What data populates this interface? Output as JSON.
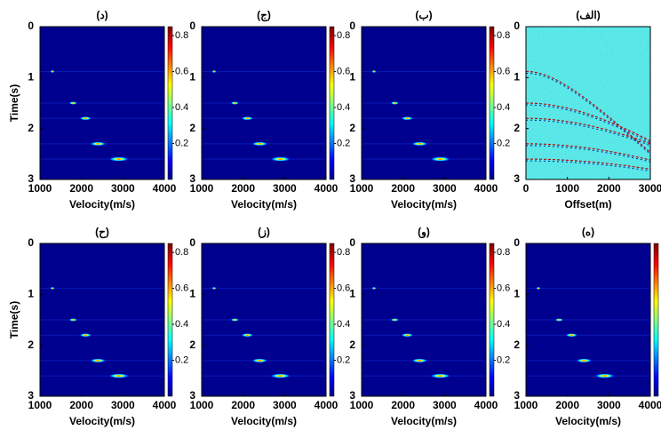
{
  "chart_data": [
    {
      "type": "velocity-spectrum",
      "title": "(د)",
      "xlabel": "Velocity(m/s)",
      "ylabel": "Time(s)",
      "xlim": [
        1000,
        4000
      ],
      "xticks": [
        1000,
        2000,
        3000,
        4000
      ],
      "ylim": [
        3,
        0
      ],
      "yticks": [
        0,
        1,
        2,
        3
      ],
      "clim": [
        0,
        0.85
      ],
      "cticks": [
        0.2,
        0.4,
        0.6,
        0.8
      ],
      "x": [
        1300,
        1800,
        2100,
        2400,
        2900
      ],
      "y": [
        0.88,
        1.5,
        1.8,
        2.3,
        2.6
      ],
      "background": "#00008f"
    },
    {
      "type": "velocity-spectrum",
      "title": "(ج)",
      "xlabel": "Velocity(m/s)",
      "xlim": [
        1000,
        4000
      ],
      "xticks": [
        1000,
        2000,
        3000,
        4000
      ],
      "ylim": [
        3,
        0
      ],
      "yticks": [
        0,
        1,
        2,
        3
      ],
      "clim": [
        0,
        0.85
      ],
      "cticks": [
        0.2,
        0.4,
        0.6,
        0.8
      ],
      "x": [
        1300,
        1800,
        2100,
        2400,
        2900
      ],
      "y": [
        0.88,
        1.5,
        1.8,
        2.3,
        2.6
      ],
      "background": "#00008f"
    },
    {
      "type": "velocity-spectrum",
      "title": "(ب)",
      "xlabel": "Velocity(m/s)",
      "xlim": [
        1000,
        4000
      ],
      "xticks": [
        1000,
        2000,
        3000,
        4000
      ],
      "ylim": [
        3,
        0
      ],
      "yticks": [
        0,
        1,
        2,
        3
      ],
      "clim": [
        0,
        0.85
      ],
      "cticks": [
        0.2,
        0.4,
        0.6,
        0.8
      ],
      "x": [
        1300,
        1800,
        2100,
        2400,
        2900
      ],
      "y": [
        0.88,
        1.5,
        1.8,
        2.3,
        2.6
      ],
      "background": "#00008f"
    },
    {
      "type": "seismic-gather",
      "title": "(الف)",
      "xlabel": "Offset(m)",
      "xlim": [
        0,
        3000
      ],
      "xticks": [
        0,
        1000,
        2000,
        3000
      ],
      "ylim": [
        3,
        0
      ],
      "yticks": [
        0,
        1,
        2,
        3
      ],
      "t0": [
        0.88,
        1.5,
        1.8,
        2.3,
        2.6
      ],
      "velocity": [
        1300,
        1800,
        2100,
        2400,
        2900
      ],
      "background": "#2fd4c4"
    },
    {
      "type": "velocity-spectrum",
      "title": "(ح)",
      "xlabel": "Velocity(m/s)",
      "ylabel": "Time(s)",
      "xlim": [
        1000,
        4000
      ],
      "xticks": [
        1000,
        2000,
        3000,
        4000
      ],
      "ylim": [
        3,
        0
      ],
      "yticks": [
        0,
        1,
        2,
        3
      ],
      "clim": [
        0,
        0.85
      ],
      "cticks": [
        0.2,
        0.4,
        0.6,
        0.8
      ],
      "x": [
        1300,
        1800,
        2100,
        2400,
        2900
      ],
      "y": [
        0.88,
        1.5,
        1.8,
        2.3,
        2.6
      ],
      "background": "#00008f"
    },
    {
      "type": "velocity-spectrum",
      "title": "(ز)",
      "xlabel": "Velocity(m/s)",
      "xlim": [
        1000,
        4000
      ],
      "xticks": [
        1000,
        2000,
        3000,
        4000
      ],
      "ylim": [
        3,
        0
      ],
      "yticks": [
        0,
        1,
        2,
        3
      ],
      "clim": [
        0,
        0.85
      ],
      "cticks": [
        0.2,
        0.4,
        0.6,
        0.8
      ],
      "x": [
        1300,
        1800,
        2100,
        2400,
        2900
      ],
      "y": [
        0.88,
        1.5,
        1.8,
        2.3,
        2.6
      ],
      "background": "#00008f"
    },
    {
      "type": "velocity-spectrum",
      "title": "(و)",
      "xlabel": "Velocity(m/s)",
      "xlim": [
        1000,
        4000
      ],
      "xticks": [
        1000,
        2000,
        3000,
        4000
      ],
      "ylim": [
        3,
        0
      ],
      "yticks": [
        0,
        1,
        2,
        3
      ],
      "clim": [
        0,
        0.85
      ],
      "cticks": [
        0.2,
        0.4,
        0.6,
        0.8
      ],
      "x": [
        1300,
        1800,
        2100,
        2400,
        2900
      ],
      "y": [
        0.88,
        1.5,
        1.8,
        2.3,
        2.6
      ],
      "background": "#00008f"
    },
    {
      "type": "velocity-spectrum",
      "title": "(ه)",
      "xlabel": "Velocity(m/s)",
      "xlim": [
        1000,
        4000
      ],
      "xticks": [
        1000,
        2000,
        3000,
        4000
      ],
      "ylim": [
        3,
        0
      ],
      "yticks": [
        0,
        1,
        2,
        3
      ],
      "clim": [
        0,
        0.85
      ],
      "x": [
        1300,
        1800,
        2100,
        2400,
        2900
      ],
      "y": [
        0.88,
        1.5,
        1.8,
        2.3,
        2.6
      ],
      "background": "#00008f"
    }
  ]
}
